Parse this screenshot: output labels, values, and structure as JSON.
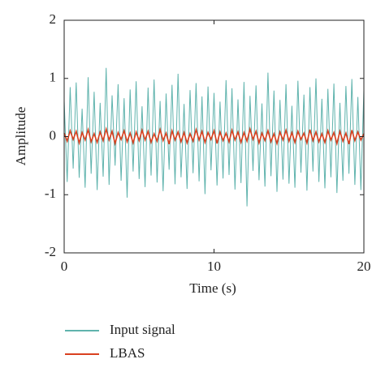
{
  "chart_data": {
    "type": "line",
    "xlabel": "Time (s)",
    "ylabel": "Amplitude",
    "x": [
      0,
      0.2,
      0.4,
      0.6,
      0.8,
      1,
      1.2,
      1.4,
      1.6,
      1.8,
      2,
      2.2,
      2.4,
      2.6,
      2.8,
      3,
      3.2,
      3.4,
      3.6,
      3.8,
      4,
      4.2,
      4.4,
      4.6,
      4.8,
      5,
      5.2,
      5.4,
      5.6,
      5.8,
      6,
      6.2,
      6.4,
      6.6,
      6.8,
      7,
      7.2,
      7.4,
      7.6,
      7.8,
      8,
      8.2,
      8.4,
      8.6,
      8.8,
      9,
      9.2,
      9.4,
      9.6,
      9.8,
      10,
      10.2,
      10.4,
      10.6,
      10.8,
      11,
      11.2,
      11.4,
      11.6,
      11.8,
      12,
      12.2,
      12.4,
      12.6,
      12.8,
      13,
      13.2,
      13.4,
      13.6,
      13.8,
      14,
      14.2,
      14.4,
      14.6,
      14.8,
      15,
      15.2,
      15.4,
      15.6,
      15.8,
      16,
      16.2,
      16.4,
      16.6,
      16.8,
      17,
      17.2,
      17.4,
      17.6,
      17.8,
      18,
      18.2,
      18.4,
      18.6,
      18.8,
      19,
      19.2,
      19.4,
      19.6,
      19.8,
      20
    ],
    "series": [
      {
        "name": "Input signal",
        "color": "#5fb3ad",
        "values": [
          0.62,
          -0.78,
          0.85,
          -0.55,
          0.93,
          -0.71,
          0.48,
          -0.88,
          1.02,
          -0.64,
          0.77,
          -0.92,
          0.58,
          -0.69,
          1.18,
          -0.83,
          0.71,
          -0.5,
          0.9,
          -0.76,
          0.66,
          -1.05,
          0.81,
          -0.6,
          0.95,
          -0.73,
          0.52,
          -0.87,
          0.84,
          -0.67,
          0.98,
          -0.79,
          0.61,
          -0.94,
          0.74,
          -0.57,
          0.89,
          -0.82,
          1.08,
          -0.7,
          0.56,
          -0.9,
          0.8,
          -0.63,
          0.92,
          -0.77,
          0.69,
          -0.99,
          0.86,
          -0.58,
          0.75,
          -0.84,
          0.6,
          -0.72,
          0.97,
          -0.66,
          0.83,
          -0.91,
          0.64,
          -0.8,
          0.94,
          -1.2,
          0.7,
          -0.59,
          0.88,
          -0.75,
          0.57,
          -0.86,
          1.1,
          -0.68,
          0.79,
          -0.95,
          0.63,
          -0.74,
          0.9,
          -0.81,
          0.53,
          -0.88,
          0.96,
          -0.62,
          0.72,
          -0.93,
          0.85,
          -0.6,
          1.0,
          -0.78,
          0.65,
          -0.89,
          0.82,
          -0.7,
          0.91,
          -0.97,
          0.58,
          -0.76,
          0.87,
          -0.64,
          0.99,
          -0.83,
          0.68,
          -0.92,
          0.8
        ]
      },
      {
        "name": "LBAS",
        "color": "#d9401f",
        "values": [
          0.06,
          -0.08,
          0.1,
          -0.05,
          0.09,
          -0.11,
          0.07,
          -0.06,
          0.12,
          -0.09,
          0.05,
          -0.1,
          0.08,
          -0.07,
          0.13,
          -0.06,
          0.09,
          -0.12,
          0.07,
          -0.05,
          0.1,
          -0.09,
          0.06,
          -0.11,
          0.08,
          -0.07,
          0.11,
          -0.06,
          0.09,
          -0.1,
          0.05,
          -0.08,
          0.12,
          -0.07,
          0.06,
          -0.13,
          0.1,
          -0.06,
          0.08,
          -0.09,
          0.07,
          -0.11,
          0.05,
          -0.08,
          0.12,
          -0.06,
          0.09,
          -0.1,
          0.07,
          -0.05,
          0.1,
          -0.12,
          0.08,
          -0.07,
          0.06,
          -0.09,
          0.11,
          -0.06,
          0.08,
          -0.1,
          0.07,
          -0.08,
          0.13,
          -0.05,
          0.09,
          -0.11,
          0.06,
          -0.07,
          0.1,
          -0.09,
          0.05,
          -0.12,
          0.08,
          -0.06,
          0.11,
          -0.08,
          0.07,
          -0.1,
          0.09,
          -0.05,
          0.06,
          -0.11,
          0.12,
          -0.07,
          0.08,
          -0.09,
          0.05,
          -0.1,
          0.1,
          -0.06,
          0.07,
          -0.12,
          0.09,
          -0.08,
          0.06,
          -0.13,
          0.11,
          -0.07,
          0.08,
          -0.06,
          0.05
        ]
      }
    ],
    "xlim": [
      0,
      20
    ],
    "xticks": [
      0,
      10,
      20
    ],
    "ylim": [
      -2,
      2
    ],
    "yticks": [
      -2,
      -1,
      0,
      1,
      2
    ]
  }
}
